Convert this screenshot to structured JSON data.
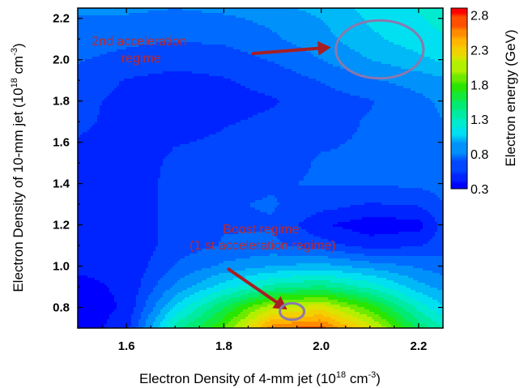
{
  "chart_data": {
    "type": "heatmap",
    "title": "",
    "xlabel": {
      "main": "Electron Density of 4-mm jet (10",
      "exp": "18",
      "unit": " cm",
      "unit_exp": "-3",
      "close": ")"
    },
    "ylabel": {
      "main": "Electron Density of 10-mm jet (10",
      "exp": "18",
      "unit": " cm",
      "unit_exp": "-3",
      "close": ")"
    },
    "xlim": [
      1.5,
      2.25
    ],
    "ylim": [
      0.7,
      2.25
    ],
    "xticks": [
      1.6,
      1.8,
      2.0,
      2.2
    ],
    "xtick_labels": [
      "1.6",
      "1.8",
      "2.0",
      "2.2"
    ],
    "yticks": [
      0.8,
      1.0,
      1.2,
      1.4,
      1.6,
      1.8,
      2.0,
      2.2
    ],
    "ytick_labels": [
      "0.8",
      "1.0",
      "1.2",
      "1.4",
      "1.6",
      "1.8",
      "2.0",
      "2.2"
    ],
    "colorbar": {
      "label": "Electron energy (GeV)",
      "range": [
        0.3,
        2.9
      ],
      "tick_values": [
        2.8,
        2.3,
        1.8,
        1.3,
        0.8,
        0.3
      ],
      "tick_labels": [
        "2.8",
        "2.3",
        "1.8",
        "1.3",
        "0.8",
        "0.3"
      ]
    },
    "grid_x": [
      1.5,
      1.6,
      1.7,
      1.8,
      1.9,
      2.0,
      2.1,
      2.2,
      2.25
    ],
    "grid_y": [
      0.7,
      0.8,
      0.9,
      1.0,
      1.1,
      1.2,
      1.3,
      1.4,
      1.5,
      1.6,
      1.7,
      1.8,
      1.9,
      2.0,
      2.1,
      2.2,
      2.25
    ],
    "z": [
      [
        0.35,
        0.5,
        1.4,
        1.85,
        2.6,
        2.7,
        2.2,
        1.55,
        1.35
      ],
      [
        0.35,
        0.45,
        1.1,
        1.6,
        2.1,
        2.2,
        1.8,
        1.3,
        1.1
      ],
      [
        0.4,
        0.45,
        0.85,
        1.15,
        1.4,
        1.5,
        1.3,
        1.0,
        0.9
      ],
      [
        0.45,
        0.45,
        0.7,
        0.85,
        0.95,
        1.0,
        0.9,
        0.8,
        0.75
      ],
      [
        0.5,
        0.45,
        0.62,
        0.7,
        0.72,
        0.62,
        0.5,
        0.55,
        0.62
      ],
      [
        0.55,
        0.45,
        0.62,
        0.68,
        0.68,
        0.45,
        0.35,
        0.38,
        0.6
      ],
      [
        0.55,
        0.45,
        0.62,
        0.68,
        0.7,
        0.62,
        0.55,
        0.58,
        0.68
      ],
      [
        0.55,
        0.45,
        0.62,
        0.65,
        0.68,
        0.7,
        0.7,
        0.72,
        0.75
      ],
      [
        0.55,
        0.45,
        0.6,
        0.6,
        0.65,
        0.7,
        0.7,
        0.75,
        0.78
      ],
      [
        0.55,
        0.45,
        0.55,
        0.58,
        0.62,
        0.68,
        0.7,
        0.75,
        0.8
      ],
      [
        0.6,
        0.5,
        0.5,
        0.55,
        0.58,
        0.65,
        0.7,
        0.75,
        0.82
      ],
      [
        0.6,
        0.52,
        0.5,
        0.52,
        0.55,
        0.62,
        0.68,
        0.78,
        0.85
      ],
      [
        0.65,
        0.55,
        0.52,
        0.55,
        0.6,
        0.7,
        0.8,
        0.88,
        0.92
      ],
      [
        0.7,
        0.65,
        0.6,
        0.62,
        0.7,
        0.82,
        0.95,
        1.05,
        1.1
      ],
      [
        0.75,
        0.72,
        0.7,
        0.72,
        0.8,
        0.9,
        1.05,
        1.15,
        1.2
      ],
      [
        0.8,
        0.8,
        0.78,
        0.8,
        0.85,
        0.95,
        1.1,
        1.2,
        1.25
      ],
      [
        0.85,
        0.85,
        0.82,
        0.85,
        0.9,
        1.0,
        1.12,
        1.22,
        1.28
      ]
    ],
    "annotations": [
      {
        "name": "2nd-acceleration",
        "lines": [
          "2nd acceleration",
          "regime"
        ],
        "anchor_data": [
          1.63,
          2.07
        ],
        "arrow_from": [
          1.86,
          2.03
        ],
        "arrow_to": [
          2.02,
          2.06
        ],
        "ellipse_center": [
          2.12,
          2.05
        ],
        "ellipse_radius": [
          0.09,
          0.14
        ]
      },
      {
        "name": "boost",
        "lines": [
          "Boost regime",
          "(1 st  acceleration regime)"
        ],
        "anchor_data": [
          1.88,
          1.16
        ],
        "arrow_from": [
          1.81,
          0.985
        ],
        "arrow_to": [
          1.93,
          0.79
        ],
        "ellipse_center": [
          1.94,
          0.78
        ],
        "ellipse_radius": [
          0.025,
          0.04
        ]
      }
    ],
    "colors": {
      "annotation_text": "#c0272d",
      "arrow": "#a91e22",
      "ellipse": "#8a79ad"
    }
  }
}
